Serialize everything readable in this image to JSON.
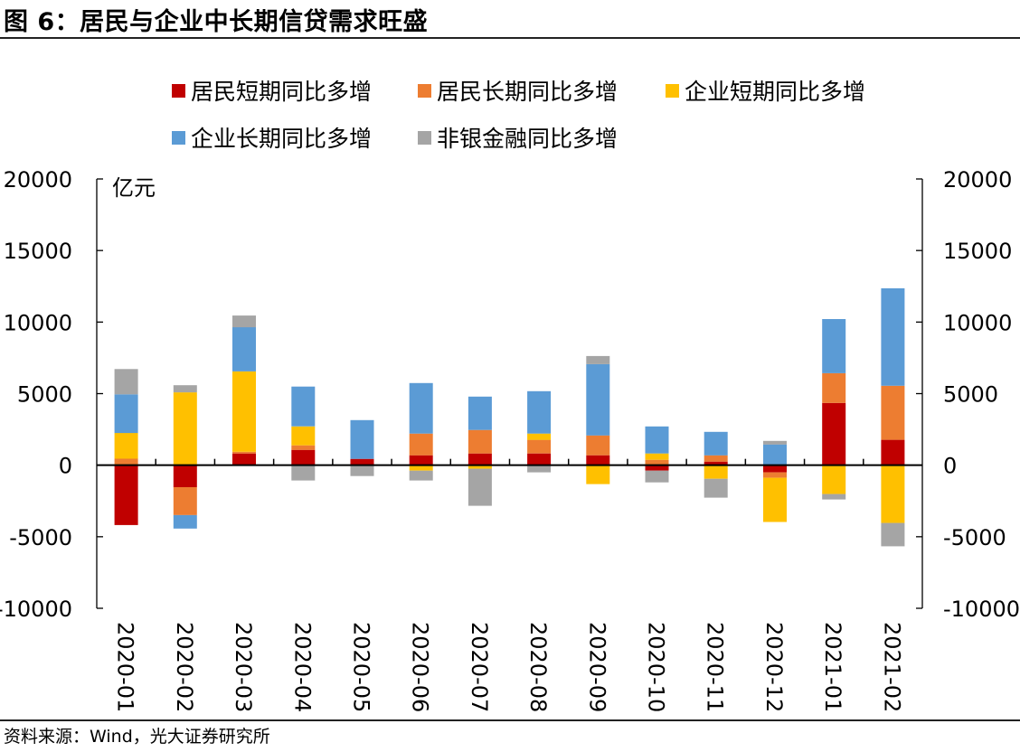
{
  "title": "图 6：居民与企业中长期信贷需求旺盛",
  "footer": "资料来源：Wind，光大证券研究所",
  "chart_data": {
    "type": "bar",
    "stacked": true,
    "title": "图 6：居民与企业中长期信贷需求旺盛",
    "unit_label": "亿元",
    "xlabel": "",
    "ylabel": "亿元",
    "ylim": [
      -10000,
      20000
    ],
    "yticks": [
      -10000,
      -5000,
      0,
      5000,
      10000,
      15000,
      20000
    ],
    "ytick_labels": [
      "-10000",
      "-5000",
      "0",
      "5000",
      "10000",
      "15000",
      "20000"
    ],
    "secondary_axis": true,
    "grid": false,
    "legend_position": "top",
    "categories": [
      "2020-01",
      "2020-02",
      "2020-03",
      "2020-04",
      "2020-05",
      "2020-06",
      "2020-07",
      "2020-08",
      "2020-09",
      "2020-10",
      "2020-11",
      "2020-12",
      "2021-01",
      "2021-02"
    ],
    "series": [
      {
        "name": "居民短期同比多增",
        "color": "#C00000",
        "values": [
          -4180,
          -1540,
          820,
          1070,
          440,
          690,
          820,
          820,
          690,
          -380,
          250,
          -500,
          4350,
          1770
        ]
      },
      {
        "name": "居民长期同比多增",
        "color": "#ED7D31",
        "values": [
          450,
          -1950,
          120,
          320,
          0,
          1520,
          1640,
          950,
          1390,
          380,
          440,
          -380,
          2080,
          3780
        ]
      },
      {
        "name": "企业短期同比多增",
        "color": "#FFC000",
        "values": [
          1800,
          5090,
          5610,
          1320,
          0,
          -380,
          -250,
          440,
          -1320,
          440,
          -950,
          -3090,
          -2020,
          -4040
        ]
      },
      {
        "name": "企业长期同比多增",
        "color": "#5B9BD5",
        "values": [
          2700,
          -940,
          3090,
          2780,
          2710,
          3530,
          2330,
          2960,
          4980,
          1890,
          1640,
          1450,
          3780,
          6810
        ]
      },
      {
        "name": "非银金融同比多增",
        "color": "#A5A5A5",
        "values": [
          1770,
          500,
          820,
          -1070,
          -760,
          -690,
          -2590,
          -500,
          570,
          -820,
          -1320,
          250,
          -380,
          -1630
        ]
      }
    ]
  }
}
